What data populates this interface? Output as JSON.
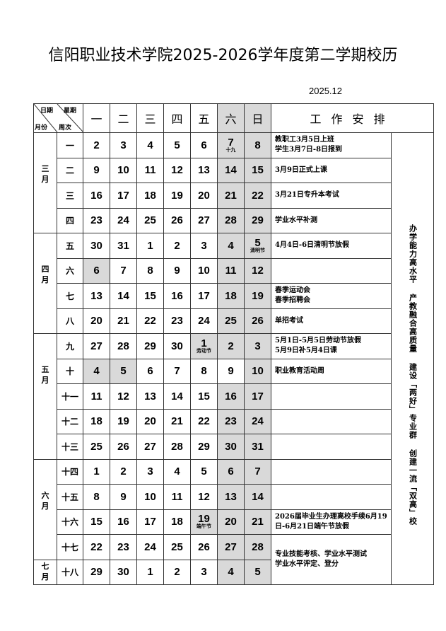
{
  "title": "信阳职业技术学院2025-2026学年度第二学期校历",
  "issue_date": "2025.12",
  "header": {
    "corner_top_left": "日期",
    "corner_top_right": "星期",
    "corner_bottom_left": "月份",
    "corner_bottom_right": "周次",
    "weekdays": [
      "一",
      "二",
      "三",
      "四",
      "五",
      "六",
      "日"
    ],
    "work": "工作安排"
  },
  "shade_color": "#d9d9d9",
  "months": [
    {
      "label": "三月",
      "weeks": 4
    },
    {
      "label": "四月",
      "weeks": 4
    },
    {
      "label": "五月",
      "weeks": 5
    },
    {
      "label": "六月",
      "weeks": 4
    },
    {
      "label": "七月",
      "weeks": 1
    }
  ],
  "weeks": [
    {
      "no": "一",
      "days": [
        "2",
        "3",
        "4",
        "5",
        "6",
        "7",
        "8"
      ],
      "notes": {
        "5": "十九"
      },
      "shaded": [
        5,
        6
      ]
    },
    {
      "no": "二",
      "days": [
        "9",
        "10",
        "11",
        "12",
        "13",
        "14",
        "15"
      ],
      "shaded": [
        5,
        6
      ]
    },
    {
      "no": "三",
      "days": [
        "16",
        "17",
        "18",
        "19",
        "20",
        "21",
        "22"
      ],
      "shaded": [
        5,
        6
      ]
    },
    {
      "no": "四",
      "days": [
        "23",
        "24",
        "25",
        "26",
        "27",
        "28",
        "29"
      ],
      "shaded": [
        5,
        6
      ]
    },
    {
      "no": "五",
      "days": [
        "30",
        "31",
        "1",
        "2",
        "3",
        "4",
        "5"
      ],
      "notes": {
        "6": "清明节"
      },
      "shaded": [
        5,
        6
      ]
    },
    {
      "no": "六",
      "days": [
        "6",
        "7",
        "8",
        "9",
        "10",
        "11",
        "12"
      ],
      "shaded": [
        0,
        5,
        6
      ]
    },
    {
      "no": "七",
      "days": [
        "13",
        "14",
        "15",
        "16",
        "17",
        "18",
        "19"
      ],
      "shaded": [
        5,
        6
      ]
    },
    {
      "no": "八",
      "days": [
        "20",
        "21",
        "22",
        "23",
        "24",
        "25",
        "26"
      ],
      "shaded": [
        5,
        6
      ]
    },
    {
      "no": "九",
      "days": [
        "27",
        "28",
        "29",
        "30",
        "1",
        "2",
        "3"
      ],
      "notes": {
        "4": "劳动节"
      },
      "shaded": [
        4,
        5,
        6
      ]
    },
    {
      "no": "十",
      "days": [
        "4",
        "5",
        "6",
        "7",
        "8",
        "9",
        "10"
      ],
      "shaded": [
        0,
        1,
        6
      ]
    },
    {
      "no": "十一",
      "days": [
        "11",
        "12",
        "13",
        "14",
        "15",
        "16",
        "17"
      ],
      "shaded": [
        5,
        6
      ]
    },
    {
      "no": "十二",
      "days": [
        "18",
        "19",
        "20",
        "21",
        "22",
        "23",
        "24"
      ],
      "shaded": [
        5,
        6
      ]
    },
    {
      "no": "十三",
      "days": [
        "25",
        "26",
        "27",
        "28",
        "29",
        "30",
        "31"
      ],
      "shaded": [
        5,
        6
      ]
    },
    {
      "no": "十四",
      "days": [
        "1",
        "2",
        "3",
        "4",
        "5",
        "6",
        "7"
      ],
      "shaded": [
        5,
        6
      ]
    },
    {
      "no": "十五",
      "days": [
        "8",
        "9",
        "10",
        "11",
        "12",
        "13",
        "14"
      ],
      "shaded": [
        5,
        6
      ]
    },
    {
      "no": "十六",
      "days": [
        "15",
        "16",
        "17",
        "18",
        "19",
        "20",
        "21"
      ],
      "notes": {
        "4": "端午节"
      },
      "shaded": [
        4,
        5,
        6
      ]
    },
    {
      "no": "十七",
      "days": [
        "22",
        "23",
        "24",
        "25",
        "26",
        "27",
        "28"
      ],
      "shaded": [
        5,
        6
      ]
    },
    {
      "no": "十八",
      "days": [
        "29",
        "30",
        "1",
        "2",
        "3",
        "4",
        "5"
      ],
      "shaded": [
        5,
        6
      ]
    }
  ],
  "work": [
    {
      "rows": 1,
      "lines": [
        "教职工3月5日上班",
        "学生3月7日-8日报到"
      ]
    },
    {
      "rows": 1,
      "lines": [
        "3月9日正式上课"
      ]
    },
    {
      "rows": 1,
      "lines": [
        "3月21日专升本考试"
      ]
    },
    {
      "rows": 1,
      "lines": [
        "学业水平补测"
      ]
    },
    {
      "rows": 1,
      "lines": [
        "4月4日-6日清明节放假"
      ]
    },
    {
      "rows": 1,
      "lines": []
    },
    {
      "rows": 1,
      "lines": [
        "春季运动会",
        "春季招聘会"
      ]
    },
    {
      "rows": 1,
      "lines": [
        "单招考试"
      ]
    },
    {
      "rows": 1,
      "lines": [
        "5月1日-5月5日劳动节放假",
        "5月9日补5月4日课"
      ]
    },
    {
      "rows": 1,
      "lines": [
        "职业教育活动周"
      ]
    },
    {
      "rows": 1,
      "lines": []
    },
    {
      "rows": 1,
      "lines": []
    },
    {
      "rows": 1,
      "lines": []
    },
    {
      "rows": 1,
      "lines": []
    },
    {
      "rows": 1,
      "lines": []
    },
    {
      "rows": 1,
      "lines": [
        "2026届毕业生办理离校手续6月19日-6月21日端午节放假"
      ]
    },
    {
      "rows": 2,
      "lines": [
        "专业技能考核、学业水平测试",
        "学业水平评定、登分"
      ]
    }
  ],
  "motto": [
    "办学能力高水平",
    "产教融合高质量",
    "建设「两好」专业群",
    "创建一流「双高」校"
  ]
}
